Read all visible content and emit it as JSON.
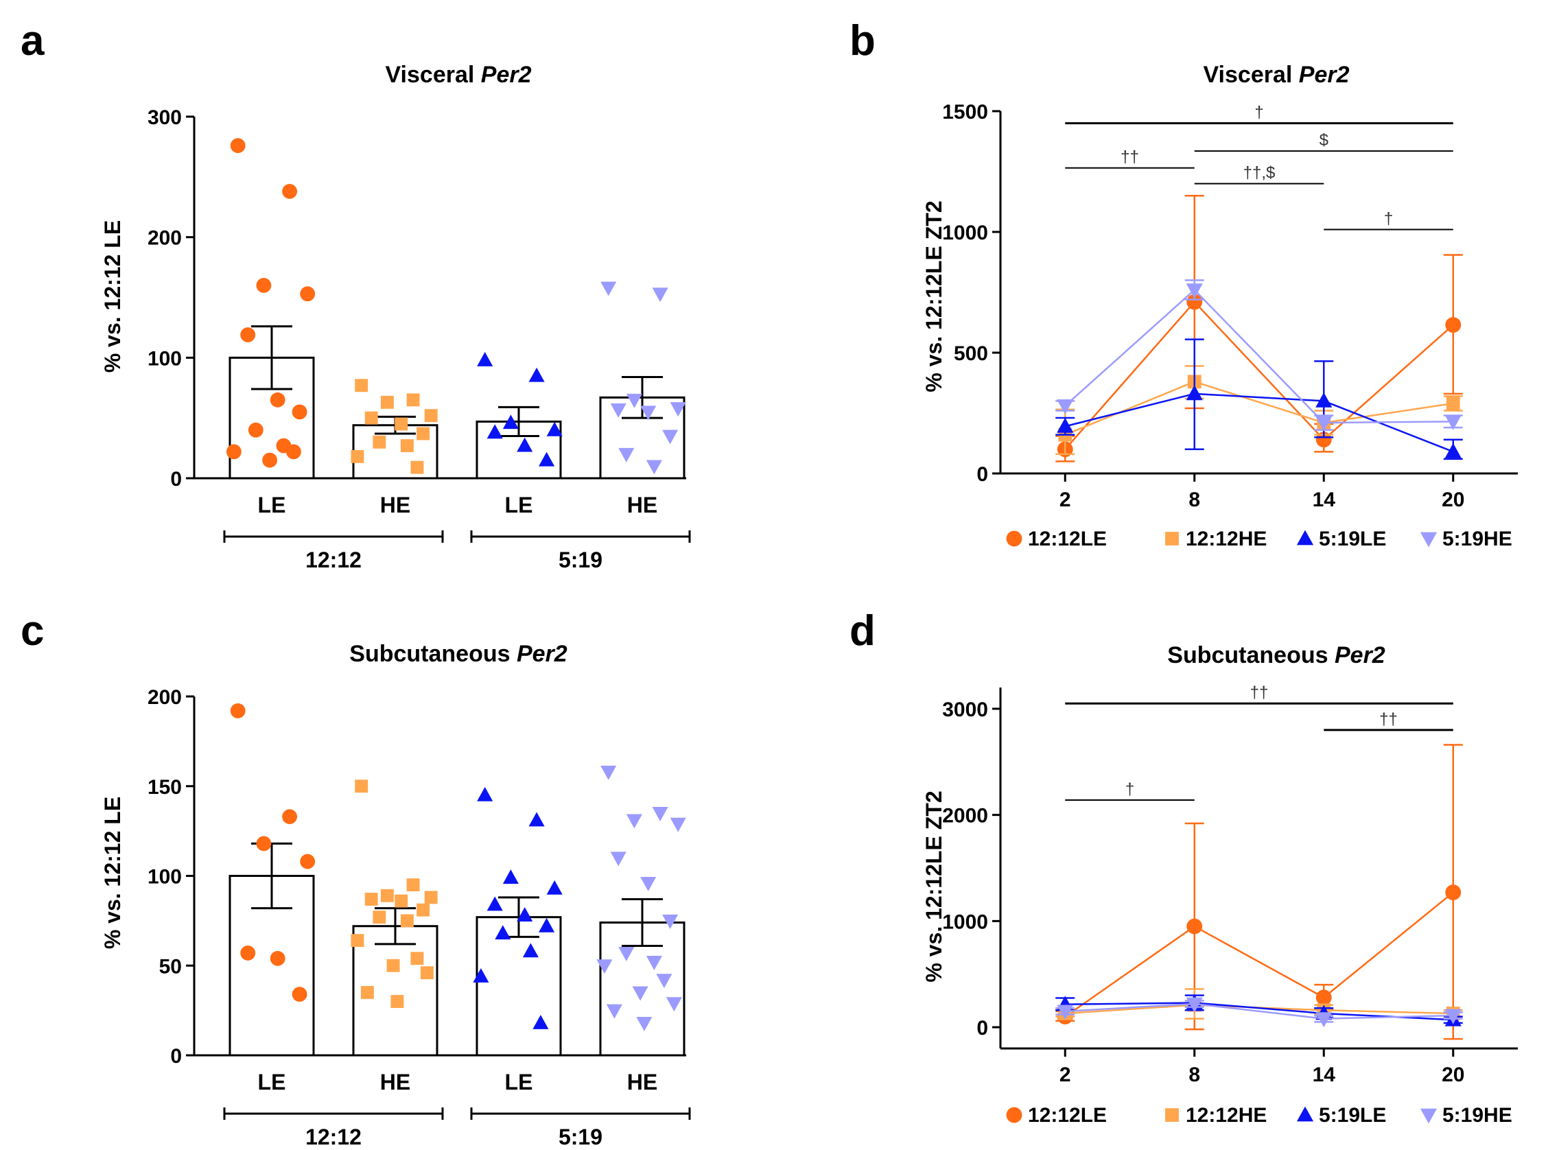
{
  "colors": {
    "c1212LE": "#ff6a13",
    "c1212HE": "#ffa64d",
    "c519LE": "#0a14f2",
    "c519HE": "#9b9bff"
  },
  "legend": [
    {
      "label": "12:12LE",
      "marker": "circle",
      "color": "#ff6a13"
    },
    {
      "label": "12:12HE",
      "marker": "square",
      "color": "#ffa64d"
    },
    {
      "label": "5:19LE",
      "marker": "triangle-up",
      "color": "#0a14f2"
    },
    {
      "label": "5:19HE",
      "marker": "triangle-down",
      "color": "#9b9bff"
    }
  ],
  "chart_data": [
    {
      "panel": "a",
      "type": "bar",
      "title_prefix": "Visceral ",
      "title_gene": "Per2",
      "ylabel": "% vs. 12:12 LE",
      "ylim": [
        0,
        300
      ],
      "yticks": [
        0,
        100,
        200,
        300
      ],
      "categories": [
        "LE",
        "HE",
        "LE",
        "HE"
      ],
      "groups": [
        {
          "label": "12:12",
          "span": [
            0,
            1
          ]
        },
        {
          "label": "5:19",
          "span": [
            2,
            3
          ]
        }
      ],
      "bars": [
        {
          "name": "12:12LE",
          "mean": 100,
          "sem": 26,
          "marker": "circle",
          "color": "#ff6a13",
          "points": [
            276,
            238,
            160,
            153,
            119,
            65,
            55,
            40,
            27,
            22,
            22,
            15
          ]
        },
        {
          "name": "12:12HE",
          "mean": 44,
          "sem": 7,
          "marker": "square",
          "color": "#ffa64d",
          "points": [
            77,
            65,
            63,
            52,
            50,
            45,
            37,
            30,
            27,
            18,
            9
          ]
        },
        {
          "name": "5:19LE",
          "mean": 47,
          "sem": 12,
          "marker": "triangle-up",
          "color": "#0a14f2",
          "points": [
            98,
            85,
            46,
            40,
            38,
            27,
            15
          ]
        },
        {
          "name": "5:19HE",
          "mean": 67,
          "sem": 17,
          "marker": "triangle-down",
          "color": "#9b9bff",
          "points": [
            158,
            153,
            65,
            58,
            57,
            55,
            35,
            20,
            10
          ]
        }
      ]
    },
    {
      "panel": "b",
      "type": "line",
      "title_prefix": "Visceral ",
      "title_gene": "Per2",
      "ylabel": "% vs. 12:12LE ZT2",
      "ylim": [
        0,
        1500
      ],
      "yticks": [
        0,
        500,
        1000,
        1500
      ],
      "x": [
        2,
        8,
        14,
        20
      ],
      "xlim": [
        -1,
        23
      ],
      "series": [
        {
          "name": "12:12LE",
          "marker": "circle",
          "color": "#ff6a13",
          "values": [
            100,
            710,
            140,
            615
          ],
          "err_hi": [
            155,
            1150,
            205,
            905
          ],
          "err_lo": [
            50,
            270,
            90,
            330
          ]
        },
        {
          "name": "12:12HE",
          "marker": "square",
          "color": "#ffa64d",
          "values": [
            160,
            380,
            210,
            290
          ],
          "err_hi": [
            265,
            445,
            260,
            320
          ],
          "err_lo": [
            80,
            310,
            160,
            260
          ]
        },
        {
          "name": "5:19LE",
          "marker": "triangle-up",
          "color": "#0a14f2",
          "values": [
            195,
            330,
            300,
            90
          ],
          "err_hi": [
            230,
            555,
            465,
            140
          ],
          "err_lo": [
            160,
            100,
            150,
            60
          ]
        },
        {
          "name": "5:19HE",
          "marker": "triangle-down",
          "color": "#9b9bff",
          "values": [
            280,
            760,
            210,
            215
          ],
          "err_hi": [
            300,
            800,
            240,
            240
          ],
          "err_lo": [
            260,
            720,
            180,
            190
          ]
        }
      ],
      "annotations": [
        {
          "label": "†",
          "from": 2,
          "to": 20,
          "y": 1450,
          "weight": "heavy"
        },
        {
          "label": "$",
          "from": 8,
          "to": 20,
          "y": 1335,
          "weight": "thin"
        },
        {
          "label": "††",
          "from": 2,
          "to": 8,
          "y": 1265,
          "weight": "thin"
        },
        {
          "label": "††,$",
          "from": 8,
          "to": 14,
          "y": 1200,
          "weight": "thin"
        },
        {
          "label": "†",
          "from": 14,
          "to": 20,
          "y": 1010,
          "weight": "thin"
        }
      ]
    },
    {
      "panel": "c",
      "type": "bar",
      "title_prefix": "Subcutaneous ",
      "title_gene": "Per2",
      "ylabel": "% vs. 12:12 LE",
      "ylim": [
        0,
        200
      ],
      "yticks": [
        0,
        50,
        100,
        150,
        200
      ],
      "categories": [
        "LE",
        "HE",
        "LE",
        "HE"
      ],
      "groups": [
        {
          "label": "12:12",
          "span": [
            0,
            1
          ]
        },
        {
          "label": "5:19",
          "span": [
            2,
            3
          ]
        }
      ],
      "bars": [
        {
          "name": "12:12LE",
          "mean": 100,
          "sem": 18,
          "marker": "circle",
          "color": "#ff6a13",
          "points": [
            192,
            133,
            118,
            108,
            57,
            54,
            34
          ]
        },
        {
          "name": "12:12HE",
          "mean": 72,
          "sem": 10,
          "marker": "square",
          "color": "#ffa64d",
          "points": [
            150,
            95,
            89,
            88,
            87,
            86,
            81,
            77,
            75,
            64,
            54,
            50,
            46,
            35,
            30
          ]
        },
        {
          "name": "5:19LE",
          "mean": 77,
          "sem": 11,
          "marker": "triangle-up",
          "color": "#0a14f2",
          "points": [
            145,
            131,
            99,
            93,
            84,
            78,
            72,
            68,
            58,
            44,
            18
          ]
        },
        {
          "name": "5:19HE",
          "mean": 74,
          "sem": 13,
          "marker": "triangle-down",
          "color": "#9b9bff",
          "points": [
            158,
            135,
            131,
            129,
            110,
            96,
            75,
            57,
            52,
            50,
            42,
            35,
            29,
            25,
            18
          ]
        }
      ]
    },
    {
      "panel": "d",
      "type": "line",
      "title_prefix": "Subcutaneous ",
      "title_gene": "Per2",
      "ylabel": "% vs. 12:12LE ZT2",
      "ylim": [
        -200,
        3200
      ],
      "yticks": [
        0,
        1000,
        2000,
        3000
      ],
      "x": [
        2,
        8,
        14,
        20
      ],
      "xlim": [
        -1,
        23
      ],
      "series": [
        {
          "name": "12:12LE",
          "marker": "circle",
          "color": "#ff6a13",
          "values": [
            100,
            950,
            280,
            1270
          ],
          "err_hi": [
            150,
            1920,
            400,
            2660
          ],
          "err_lo": [
            60,
            -20,
            170,
            -110
          ]
        },
        {
          "name": "12:12HE",
          "marker": "square",
          "color": "#ffa64d",
          "values": [
            130,
            210,
            160,
            130
          ],
          "err_hi": [
            170,
            360,
            210,
            160
          ],
          "err_lo": [
            100,
            80,
            120,
            100
          ]
        },
        {
          "name": "5:19LE",
          "marker": "triangle-up",
          "color": "#0a14f2",
          "values": [
            215,
            230,
            130,
            70
          ],
          "err_hi": [
            275,
            300,
            180,
            100
          ],
          "err_lo": [
            160,
            160,
            90,
            40
          ]
        },
        {
          "name": "5:19HE",
          "marker": "triangle-down",
          "color": "#9b9bff",
          "values": [
            150,
            220,
            80,
            110
          ],
          "err_hi": [
            180,
            250,
            110,
            140
          ],
          "err_lo": [
            120,
            190,
            50,
            80
          ]
        }
      ],
      "annotations": [
        {
          "label": "††",
          "from": 2,
          "to": 20,
          "y": 3050,
          "weight": "heavy"
        },
        {
          "label": "††",
          "from": 14,
          "to": 20,
          "y": 2800,
          "weight": "heavy"
        },
        {
          "label": "†",
          "from": 2,
          "to": 8,
          "y": 2140,
          "weight": "thin"
        }
      ]
    }
  ]
}
